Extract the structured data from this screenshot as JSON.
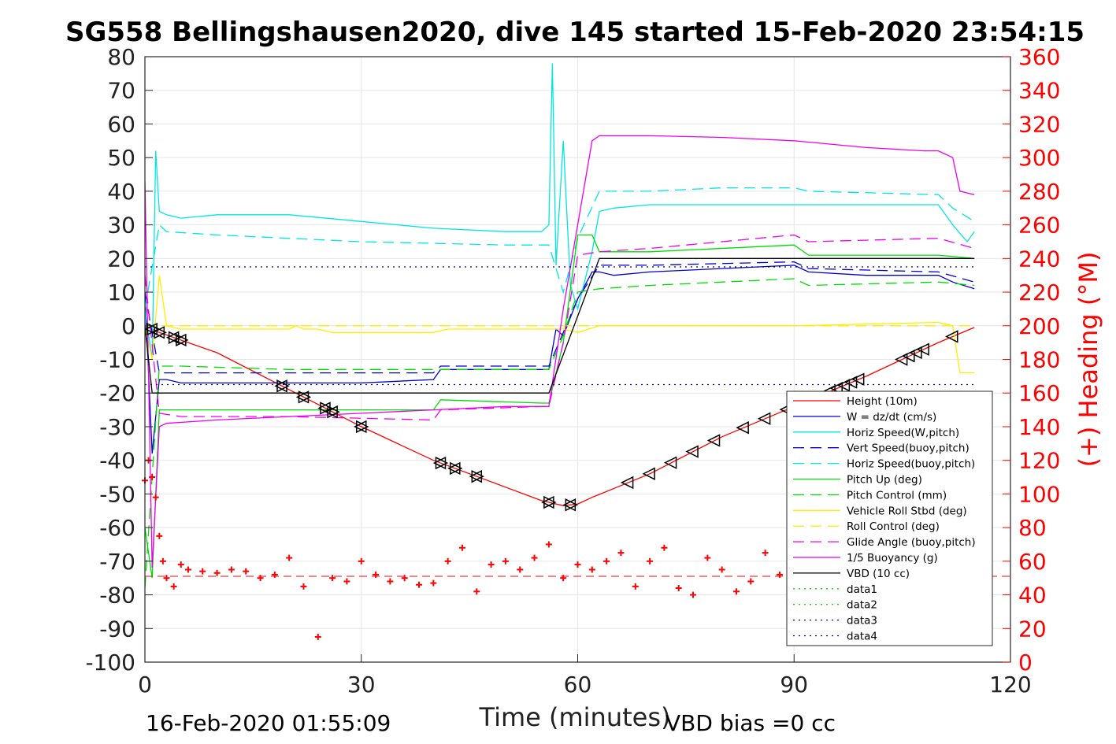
{
  "chart_data": {
    "type": "line",
    "title": "SG558 Bellingshausen2020, dive 145 started 15-Feb-2020 23:54:15",
    "xlabel": "Time (minutes)",
    "ylabel": "",
    "ylabel_right": "(+) Heading (°M)",
    "xlim": [
      0,
      120
    ],
    "ylim": [
      -100,
      80
    ],
    "ylim_right": [
      0,
      360
    ],
    "xticks": [
      "0",
      "30",
      "60",
      "90",
      "120"
    ],
    "yticks": [
      "80",
      "70",
      "60",
      "50",
      "40",
      "30",
      "20",
      "10",
      "0",
      "-10",
      "-20",
      "-30",
      "-40",
      "-50",
      "-60",
      "-70",
      "-80",
      "-90",
      "-100"
    ],
    "yticks_right": [
      "360",
      "340",
      "320",
      "300",
      "280",
      "260",
      "240",
      "220",
      "200",
      "180",
      "160",
      "140",
      "120",
      "100",
      "80",
      "60",
      "40",
      "20",
      "0"
    ],
    "grid": true,
    "legend_position": "bottom-right",
    "footer_left": "16-Feb-2020 01:55:09",
    "footer_right": "VBD bias =0 cc",
    "series": [
      {
        "name": "Height (10m)",
        "color": "#ff0000",
        "style": "solid",
        "x": [
          0,
          2,
          10,
          20,
          30,
          40,
          50,
          55,
          58,
          60,
          62,
          70,
          80,
          90,
          100,
          110,
          115
        ],
        "y": [
          0,
          -2,
          -8,
          -19,
          -30,
          -40,
          -48,
          -52,
          -53.5,
          -53,
          -51,
          -44,
          -33,
          -24,
          -15,
          -5,
          -0.5
        ]
      },
      {
        "name": "W = dz/dt (cm/s)",
        "color": "#0000cc",
        "style": "solid",
        "x": [
          0,
          1,
          2,
          3,
          5,
          10,
          20,
          30,
          40,
          41,
          45,
          50,
          55,
          56,
          57,
          58,
          60,
          62,
          63,
          65,
          70,
          80,
          90,
          92,
          100,
          110,
          112,
          115
        ],
        "y": [
          10,
          -38,
          -16,
          -16,
          -17,
          -17,
          -17,
          -17,
          -16,
          -13,
          -13,
          -13,
          -13,
          -13,
          -1,
          -3,
          8,
          16,
          16,
          15,
          16,
          17,
          18,
          16,
          15,
          15,
          13,
          11
        ]
      },
      {
        "name": "Horiz Speed(W,pitch)",
        "color": "#00e5e5",
        "style": "solid",
        "x": [
          0,
          1,
          1.5,
          2,
          3,
          5,
          10,
          20,
          30,
          40,
          50,
          55,
          56,
          56.5,
          57,
          58,
          59,
          60,
          62,
          63,
          65,
          70,
          80,
          90,
          100,
          110,
          112,
          114,
          115
        ],
        "y": [
          5,
          -10,
          52,
          34,
          33,
          32,
          33,
          33,
          31,
          29,
          28,
          28,
          30,
          78,
          18,
          55,
          12,
          5,
          22,
          34,
          35,
          36,
          36,
          36,
          36,
          36,
          30,
          25,
          28
        ]
      },
      {
        "name": "Vert Speed(buoy,pitch)",
        "color": "#0000cc",
        "style": "dashed",
        "x": [
          0,
          2,
          5,
          20,
          40,
          41,
          55,
          56,
          58,
          60,
          63,
          70,
          90,
          92,
          110,
          115
        ],
        "y": [
          10,
          -14,
          -14,
          -14,
          -14,
          -12,
          -12,
          -12,
          -2,
          8,
          18,
          18,
          19,
          17,
          16,
          13
        ]
      },
      {
        "name": "Horiz Speed(buoy,pitch)",
        "color": "#00e5e5",
        "style": "dashed",
        "x": [
          0,
          2,
          3,
          10,
          20,
          30,
          40,
          50,
          55,
          56,
          58,
          60,
          63,
          70,
          80,
          90,
          92,
          110,
          112,
          115
        ],
        "y": [
          5,
          30,
          28,
          27,
          26,
          25,
          24.5,
          24,
          24,
          24,
          10,
          26,
          40,
          40,
          41,
          41,
          40,
          39,
          35,
          31
        ]
      },
      {
        "name": "Pitch Up (deg)",
        "color": "#00dd00",
        "style": "solid",
        "x": [
          0,
          1,
          2,
          5,
          20,
          40,
          41,
          55,
          56,
          58,
          60,
          62,
          63,
          70,
          90,
          92,
          110,
          115
        ],
        "y": [
          -60,
          -75,
          -25,
          -25,
          -25,
          -25,
          -22,
          -23,
          -23,
          -5,
          27,
          27,
          22,
          22,
          24,
          21,
          21,
          20
        ]
      },
      {
        "name": "Pitch Control (mm)",
        "color": "#00dd00",
        "style": "dashed",
        "x": [
          0,
          2,
          5,
          20,
          40,
          55,
          56,
          58,
          60,
          63,
          70,
          90,
          92,
          110,
          115
        ],
        "y": [
          -78,
          -12,
          -12,
          -13,
          -13,
          -13,
          -13,
          -3,
          10,
          11,
          12,
          14,
          12,
          13,
          12
        ]
      },
      {
        "name": "Vehicle Roll Stbd (deg)",
        "color": "#ffee00",
        "style": "solid",
        "x": [
          0,
          1,
          2,
          3,
          5,
          20,
          21,
          22,
          24,
          26,
          40,
          42,
          44,
          56,
          58,
          60,
          63,
          70,
          90,
          110,
          112,
          113,
          115
        ],
        "y": [
          0,
          -10,
          15,
          0,
          -1,
          -1,
          0,
          -1,
          -1,
          -2,
          -2,
          -1,
          -1,
          -1,
          -1,
          -2,
          0,
          0,
          0,
          1,
          0,
          -14,
          -14
        ]
      },
      {
        "name": "Roll Control (deg)",
        "color": "#ffee00",
        "style": "dashed",
        "x": [
          0,
          2,
          5,
          40,
          56,
          60,
          63,
          90,
          110,
          115
        ],
        "y": [
          0,
          0,
          0,
          0,
          0,
          0,
          0,
          0,
          0,
          0
        ]
      },
      {
        "name": "Glide Angle (buoy,pitch)",
        "color": "#ee00ee",
        "style": "dashed",
        "x": [
          0,
          2,
          5,
          20,
          40,
          41,
          55,
          56,
          58,
          60,
          63,
          70,
          90,
          92,
          110,
          115
        ],
        "y": [
          15,
          -26,
          -27,
          -27,
          -28,
          -25,
          -24,
          -24,
          -5,
          21,
          22,
          23,
          27,
          25,
          26,
          23
        ]
      },
      {
        "name": "1/5 Buoyancy (g)",
        "color": "#ee00ee",
        "style": "solid",
        "x": [
          0,
          0.5,
          1,
          2,
          3,
          10,
          20,
          30,
          40,
          50,
          55,
          56,
          58,
          60,
          62,
          63,
          70,
          80,
          90,
          100,
          108,
          110,
          112,
          113,
          115
        ],
        "y": [
          43,
          -15,
          -72,
          -30,
          -29,
          -28,
          -27,
          -26,
          -25,
          -24,
          -24,
          -24,
          5,
          30,
          55,
          56.5,
          56.5,
          56,
          55,
          53,
          52,
          52,
          50,
          40,
          39
        ]
      },
      {
        "name": "VBD (10 cc)",
        "color": "#000000",
        "style": "solid",
        "x": [
          0,
          1,
          2,
          56,
          63,
          115
        ],
        "y": [
          0,
          -20,
          -20,
          -20,
          20,
          20
        ]
      },
      {
        "name": "data1",
        "color": "#00dd00",
        "style": "dotted",
        "x": [],
        "y": []
      },
      {
        "name": "data2",
        "color": "#00dd00",
        "style": "dotted",
        "x": [],
        "y": []
      },
      {
        "name": "data3",
        "color": "#00008b",
        "style": "dotted",
        "x": [
          0,
          115
        ],
        "y": [
          17.5,
          17.5
        ]
      },
      {
        "name": "data4",
        "color": "#00008b",
        "style": "dotted",
        "x": [
          0,
          115
        ],
        "y": [
          -17.5,
          -17.5
        ]
      }
    ],
    "heading": {
      "name": "(+) Heading (°M)",
      "color": "#ff0000",
      "marker": "+",
      "axis": "right",
      "x": [
        0,
        0.5,
        1,
        1.5,
        2,
        2.5,
        3,
        4,
        5,
        6,
        8,
        10,
        12,
        14,
        16,
        18,
        20,
        22,
        24,
        26,
        28,
        30,
        32,
        34,
        36,
        38,
        40,
        42,
        44,
        46,
        48,
        50,
        52,
        54,
        56,
        58,
        60,
        62,
        64,
        66,
        68,
        70,
        72,
        74,
        76,
        78,
        80,
        82,
        84,
        86,
        88,
        90,
        92,
        94,
        96,
        98,
        100
      ],
      "y": [
        108,
        120,
        110,
        98,
        75,
        60,
        50,
        45,
        58,
        55,
        54,
        53,
        55,
        54,
        50,
        52,
        62,
        45,
        15,
        50,
        48,
        60,
        52,
        48,
        50,
        46,
        47,
        60,
        68,
        42,
        58,
        60,
        55,
        62,
        70,
        50,
        58,
        55,
        60,
        65,
        45,
        60,
        68,
        44,
        40,
        62,
        55,
        42,
        48,
        65,
        52,
        58,
        48,
        55,
        62,
        50,
        58
      ],
      "mean": 51
    },
    "markers": {
      "name": "triangle markers on Height",
      "x_down": [
        1,
        2,
        4,
        5,
        19,
        22,
        25,
        26,
        30,
        41,
        43,
        46
      ],
      "x_bottom": [
        56,
        59
      ],
      "x_up": [
        67,
        70,
        73,
        76,
        79,
        83,
        86,
        89,
        95,
        96,
        97,
        98,
        99,
        105,
        106,
        107,
        108,
        112
      ]
    }
  }
}
